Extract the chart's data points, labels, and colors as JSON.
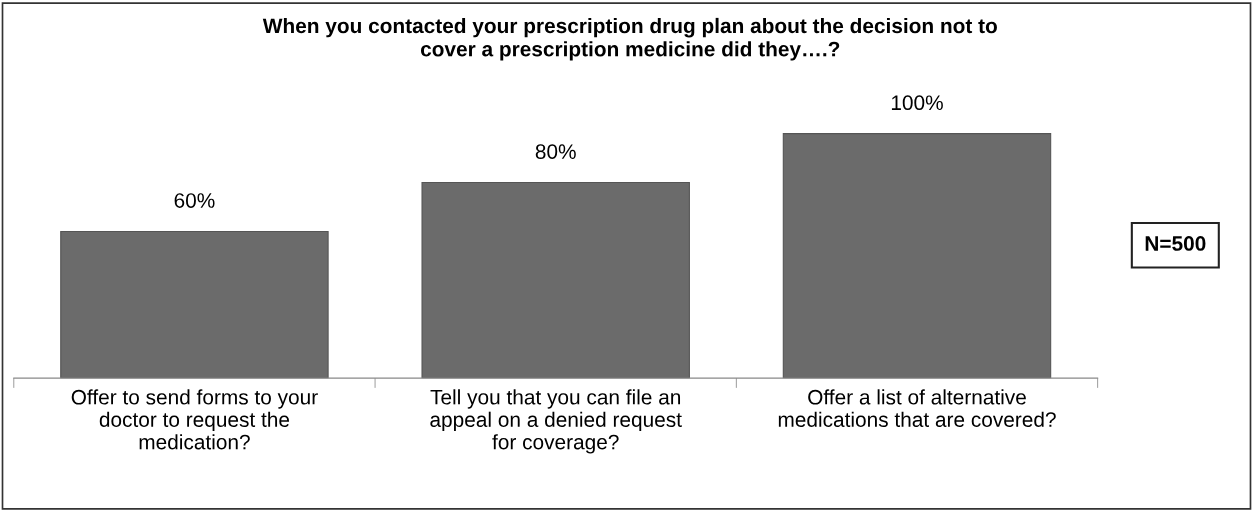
{
  "chart_data": {
    "type": "bar",
    "title": "When you contacted your prescription drug plan about the decision not to\ncover a prescription medicine did they….?",
    "categories": [
      "Offer to send forms to your\ndoctor to request the\nmedication?",
      "Tell you that you can file an\nappeal on a denied request\nfor coverage?",
      "Offer a list of alternative\nmedications that are covered?"
    ],
    "values": [
      60,
      80,
      100
    ],
    "value_labels": [
      "60%",
      "80%",
      "100%"
    ],
    "color": "#6b6b6b",
    "grid": false,
    "annotations": [
      "N=500"
    ]
  }
}
